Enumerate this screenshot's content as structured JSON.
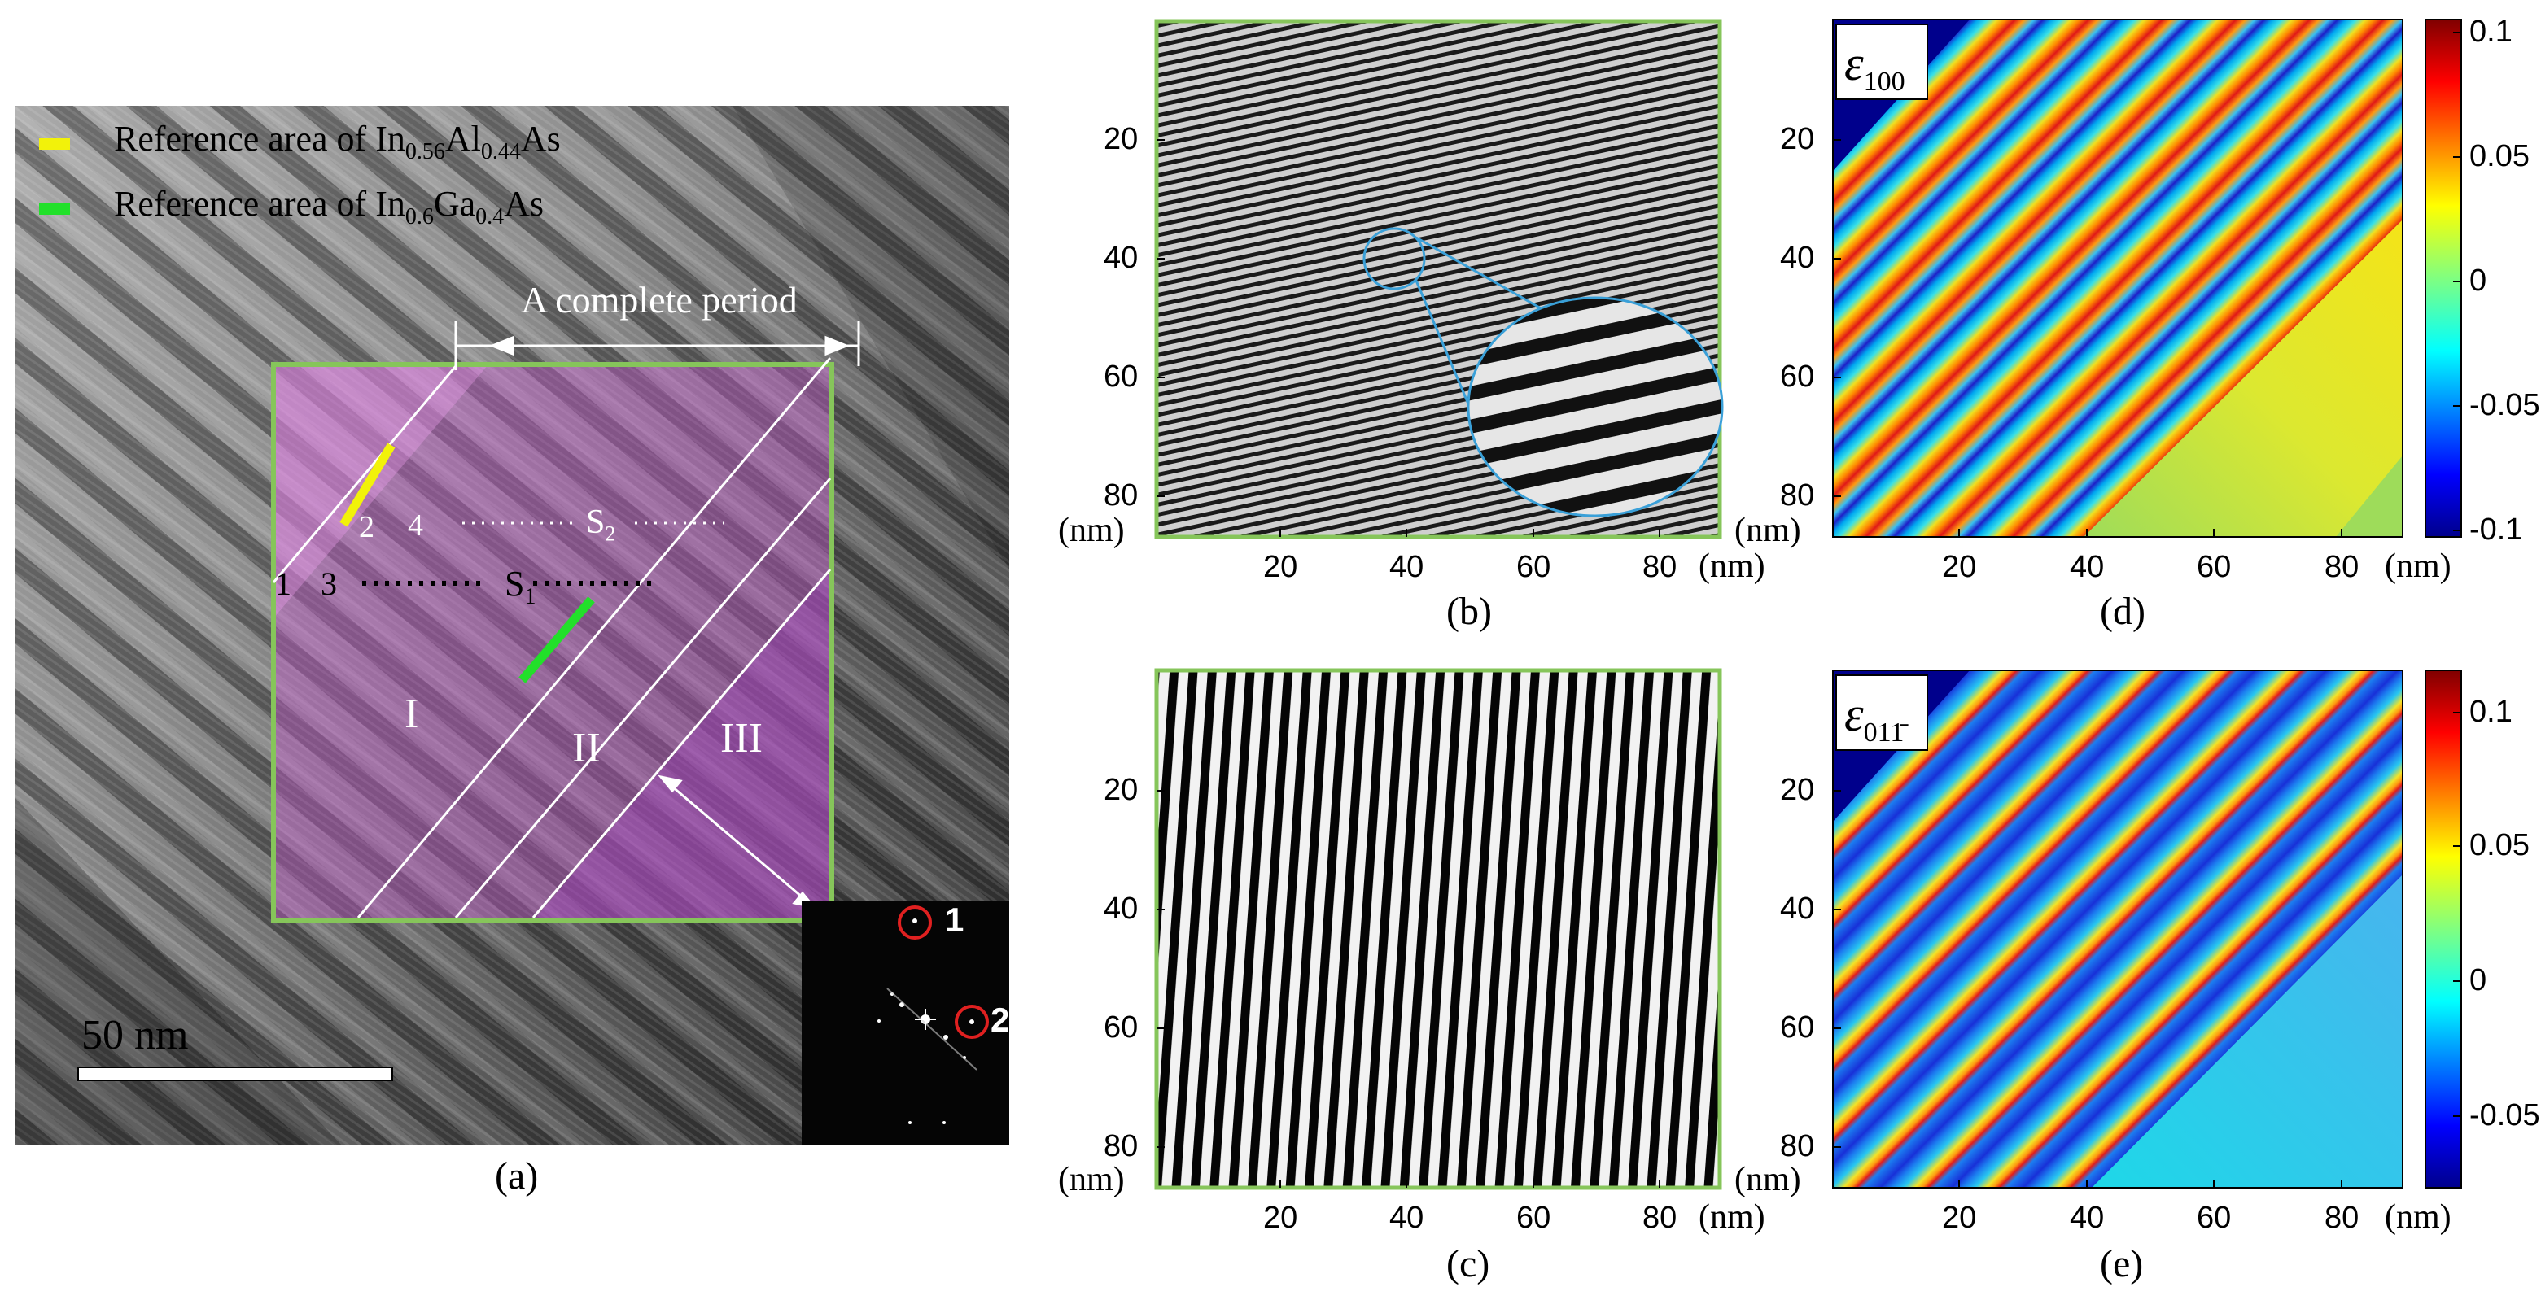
{
  "panel_a": {
    "legend": [
      {
        "pre": "Reference area of In",
        "s1": "0.56",
        "mid": "Al",
        "s2": "0.44",
        "post": "As",
        "color": "#f2f20a"
      },
      {
        "pre": "Reference area of In",
        "s1": "0.6",
        "mid": "Ga",
        "s2": "0.4",
        "post": "As",
        "color": "#22e02a"
      }
    ],
    "period_label": "A complete period",
    "points": [
      "1",
      "3",
      "2",
      "4"
    ],
    "s1": {
      "main": "S",
      "sub": "1"
    },
    "s2": {
      "main": "S",
      "sub": "2"
    },
    "regions": [
      "I",
      "II",
      "III"
    ],
    "scale_bar": "50 nm",
    "fft_spots": [
      "1",
      "2"
    ],
    "caption": "(a)"
  },
  "panel_b": {
    "caption": "(b)",
    "yticks": [
      "20",
      "40",
      "60",
      "80"
    ],
    "xticks": [
      "20",
      "40",
      "60",
      "80"
    ],
    "unit": "(nm)"
  },
  "panel_c": {
    "caption": "(c)",
    "yticks": [
      "20",
      "40",
      "60",
      "80"
    ],
    "xticks": [
      "20",
      "40",
      "60",
      "80"
    ],
    "unit": "(nm)"
  },
  "panel_d": {
    "caption": "(d)",
    "label_main": "ε",
    "label_sub": "100",
    "yticks": [
      "20",
      "40",
      "60",
      "80"
    ],
    "xticks": [
      "20",
      "40",
      "60",
      "80"
    ],
    "cbar_ticks": [
      "0.1",
      "0.05",
      "0",
      "-0.05",
      "-0.1"
    ],
    "unit": "(nm)"
  },
  "panel_e": {
    "caption": "(e)",
    "label_main": "ε",
    "label_sub": "011̄",
    "yticks": [
      "20",
      "40",
      "60",
      "80"
    ],
    "xticks": [
      "20",
      "40",
      "60",
      "80"
    ],
    "cbar_ticks": [
      "0.1",
      "0.05",
      "0",
      "-0.05"
    ],
    "unit": "(nm)"
  },
  "colors": {
    "frame_green": "#86c55a",
    "magenta_overlay": "#c85ad2",
    "cyan_outline": "#3aa0d8",
    "fft_red": "#e02020"
  }
}
